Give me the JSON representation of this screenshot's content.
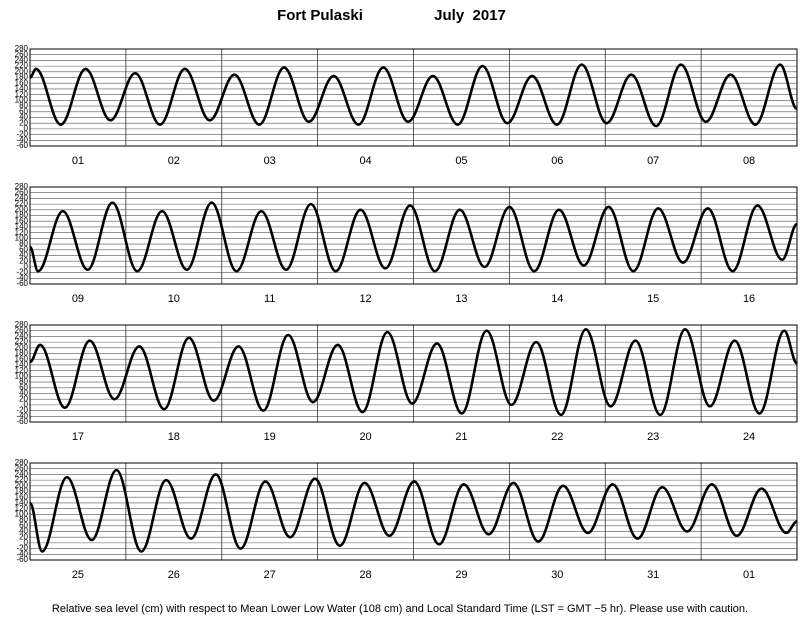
{
  "title": "Fort Pulaski",
  "date": "July  2017",
  "note": "Relative sea level (cm) with respect to Mean Lower Low Water (108 cm) and Local Standard Time (LST = GMT −5 hr). Please use with caution.",
  "chart_data": [
    {
      "type": "line",
      "color": "#000000",
      "grid": true,
      "categories": [
        "01",
        "02",
        "03",
        "04",
        "05",
        "06",
        "07",
        "08"
      ],
      "xlim": [
        0,
        192
      ],
      "ylim": [
        -60,
        280
      ],
      "yticks": [
        280,
        260,
        240,
        220,
        200,
        180,
        160,
        140,
        120,
        100,
        80,
        60,
        40,
        20,
        0,
        -20,
        -40,
        -60
      ],
      "x": [
        0,
        1.5,
        7.71,
        13.92,
        20.13,
        26.34,
        32.55,
        38.76,
        44.97,
        51.18,
        57.39,
        63.6,
        69.81,
        76.02,
        82.23,
        88.44,
        94.65,
        100.86,
        107.07,
        113.28,
        119.49,
        125.7,
        131.91,
        138.12,
        144.33,
        150.54,
        156.75,
        162.96,
        169.17,
        175.38,
        181.59,
        187.8,
        192
      ],
      "values": [
        180,
        210,
        15,
        210,
        30,
        195,
        15,
        210,
        30,
        190,
        15,
        215,
        25,
        185,
        15,
        215,
        25,
        185,
        15,
        220,
        20,
        185,
        15,
        225,
        20,
        190,
        10,
        225,
        25,
        190,
        15,
        225,
        70
      ]
    },
    {
      "type": "line",
      "color": "#000000",
      "grid": true,
      "categories": [
        "09",
        "10",
        "11",
        "12",
        "13",
        "14",
        "15",
        "16"
      ],
      "xlim": [
        0,
        192
      ],
      "ylim": [
        -60,
        280
      ],
      "yticks": [
        280,
        260,
        240,
        220,
        200,
        180,
        160,
        140,
        120,
        100,
        80,
        60,
        40,
        20,
        0,
        -20,
        -40,
        -60
      ],
      "x": [
        0,
        2.01,
        8.22,
        14.43,
        20.64,
        26.85,
        33.06,
        39.27,
        45.48,
        51.69,
        57.9,
        64.11,
        70.32,
        76.53,
        82.74,
        88.95,
        95.16,
        101.37,
        107.58,
        113.79,
        120.0,
        126.21,
        132.42,
        138.63,
        144.84,
        151.05,
        157.26,
        163.47,
        169.68,
        175.89,
        182.1,
        188.31,
        192
      ],
      "values": [
        70,
        -15,
        195,
        -10,
        225,
        -15,
        195,
        -10,
        225,
        -15,
        195,
        -10,
        220,
        -15,
        200,
        -5,
        215,
        -15,
        200,
        0,
        210,
        -15,
        200,
        5,
        210,
        -15,
        205,
        15,
        205,
        -15,
        215,
        25,
        150
      ]
    },
    {
      "type": "line",
      "color": "#000000",
      "grid": true,
      "categories": [
        "17",
        "18",
        "19",
        "20",
        "21",
        "22",
        "23",
        "24"
      ],
      "xlim": [
        0,
        192
      ],
      "ylim": [
        -60,
        280
      ],
      "yticks": [
        280,
        260,
        240,
        220,
        200,
        180,
        160,
        140,
        120,
        100,
        80,
        60,
        40,
        20,
        0,
        -20,
        -40,
        -60
      ],
      "x": [
        0,
        2.52,
        8.73,
        14.94,
        21.15,
        27.36,
        33.57,
        39.78,
        45.99,
        52.2,
        58.41,
        64.62,
        70.83,
        77.04,
        83.25,
        89.46,
        95.67,
        101.88,
        108.09,
        114.3,
        120.51,
        126.72,
        132.93,
        139.14,
        145.35,
        151.56,
        157.77,
        163.98,
        170.19,
        176.4,
        182.61,
        188.82,
        192
      ],
      "values": [
        150,
        210,
        -10,
        225,
        20,
        205,
        -15,
        235,
        15,
        205,
        -20,
        245,
        10,
        210,
        -25,
        255,
        5,
        215,
        -30,
        260,
        0,
        220,
        -35,
        265,
        -5,
        225,
        -35,
        265,
        -5,
        225,
        -30,
        260,
        145
      ]
    },
    {
      "type": "line",
      "color": "#000000",
      "grid": true,
      "categories": [
        "25",
        "26",
        "27",
        "28",
        "29",
        "30",
        "31",
        "01"
      ],
      "xlim": [
        0,
        192
      ],
      "ylim": [
        -60,
        280
      ],
      "yticks": [
        280,
        260,
        240,
        220,
        200,
        180,
        160,
        140,
        120,
        100,
        80,
        60,
        40,
        20,
        0,
        -20,
        -40,
        -60
      ],
      "x": [
        0,
        3.03,
        9.24,
        15.45,
        21.66,
        27.87,
        34.08,
        40.29,
        46.5,
        52.71,
        58.92,
        65.13,
        71.34,
        77.55,
        83.76,
        89.97,
        96.18,
        102.39,
        108.6,
        114.81,
        121.02,
        127.23,
        133.44,
        139.65,
        145.86,
        152.07,
        158.28,
        164.49,
        170.7,
        176.91,
        183.12,
        189.33,
        192
      ],
      "values": [
        140,
        -30,
        230,
        10,
        255,
        -30,
        220,
        15,
        240,
        -20,
        215,
        20,
        225,
        -10,
        210,
        25,
        215,
        -5,
        205,
        30,
        210,
        5,
        200,
        35,
        205,
        15,
        195,
        40,
        205,
        25,
        190,
        35,
        75
      ]
    }
  ]
}
